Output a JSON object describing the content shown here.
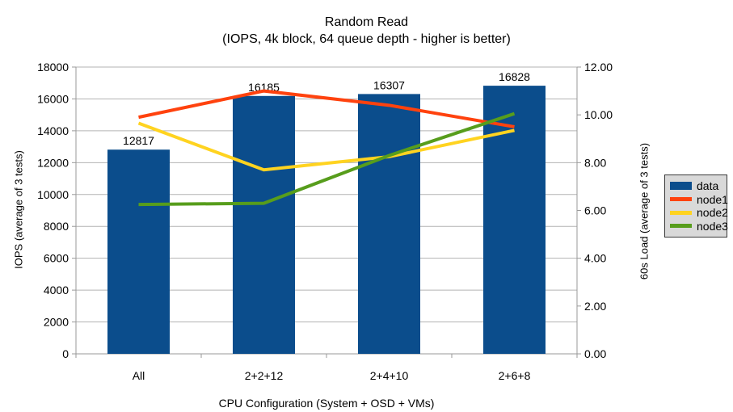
{
  "title": "Random Read",
  "subtitle": "(IOPS, 4k block, 64 queue depth - higher is better)",
  "chart_data": {
    "type": "bar",
    "subtype": "combo-bar-line-dual-axis",
    "categories": [
      "All",
      "2+2+12",
      "2+4+10",
      "2+6+8"
    ],
    "series": [
      {
        "name": "data",
        "type": "bar",
        "axis": "left",
        "color": "#0b4d8c",
        "values": [
          12817,
          16185,
          16307,
          16828
        ]
      },
      {
        "name": "node1",
        "type": "line",
        "axis": "right",
        "color": "#ff420e",
        "values": [
          9.9,
          11.0,
          10.4,
          9.5
        ]
      },
      {
        "name": "node2",
        "type": "line",
        "axis": "right",
        "color": "#ffd320",
        "values": [
          9.65,
          7.7,
          8.25,
          9.35
        ]
      },
      {
        "name": "node3",
        "type": "line",
        "axis": "right",
        "color": "#579d1c",
        "values": [
          6.25,
          6.3,
          8.3,
          10.05
        ]
      }
    ],
    "bar_value_labels": [
      "12817",
      "16185",
      "16307",
      "16828"
    ],
    "xlabel": "CPU Configuration (System + OSD + VMs)",
    "ylabel_left": "IOPS (average of 3 tests)",
    "ylabel_right": "60s Load (average of 3 tests)",
    "y_left_axis": {
      "min": 0,
      "max": 18000,
      "step": 2000,
      "tick_labels": [
        "0",
        "2000",
        "4000",
        "6000",
        "8000",
        "10000",
        "12000",
        "14000",
        "16000",
        "18000"
      ]
    },
    "y_right_axis": {
      "min": 0,
      "max": 12,
      "step": 2,
      "tick_labels": [
        "0.00",
        "2.00",
        "4.00",
        "6.00",
        "8.00",
        "10.00",
        "12.00"
      ]
    },
    "grid": true,
    "legend_position": "right",
    "colors": {
      "grid": "#b3b3b3",
      "axis": "#999999",
      "legend_bg": "#d9d9d9",
      "legend_border": "#3a3a3a",
      "text": "#000000",
      "background": "#ffffff"
    }
  },
  "legend": {
    "items": [
      {
        "label": "data"
      },
      {
        "label": "node1"
      },
      {
        "label": "node2"
      },
      {
        "label": "node3"
      }
    ]
  }
}
